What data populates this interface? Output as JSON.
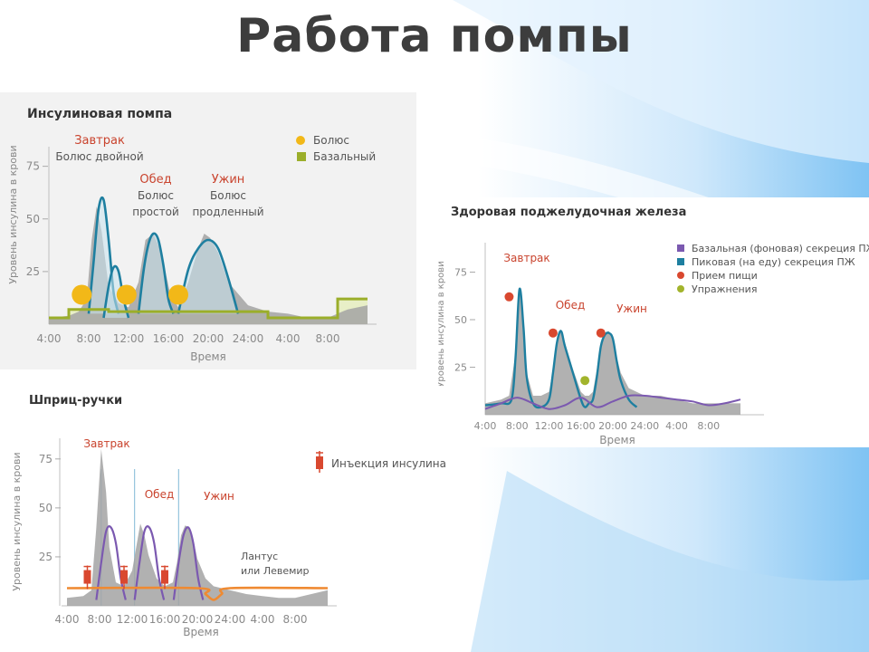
{
  "slide_title": "Работа помпы",
  "colors": {
    "bolus": "#f2b818",
    "basal": "#9bae2a",
    "peak_curve": "#1e7fa0",
    "fill_gray": "#a3a3a3",
    "meal_label": "#c9432d",
    "basal_secretion": "#7b59b0",
    "food_intake": "#d9482f",
    "exercise": "#a2b42c",
    "injection": "#d9482f",
    "long_insulin": "#ef8a32"
  },
  "chart_data": [
    {
      "id": "pump",
      "type": "area",
      "title": "Инсулиновая помпа",
      "xlabel": "Время",
      "ylabel": "Уровень инсулина в крови",
      "x_ticks": [
        "4:00",
        "8:00",
        "12:00",
        "16:00",
        "20:00",
        "24:00",
        "4:00",
        "8:00"
      ],
      "x_range": [
        4,
        36
      ],
      "y_ticks": [
        25,
        50,
        75
      ],
      "ylim": [
        0,
        80
      ],
      "legend": [
        {
          "label": "Болюс",
          "marker": "circle",
          "color": "#f2b818"
        },
        {
          "label": "Базальный",
          "marker": "square",
          "color": "#9bae2a"
        }
      ],
      "annotations": [
        {
          "meal": "Завтрак",
          "note": "Болюс двойной"
        },
        {
          "meal": "Обед",
          "note": "Болюс простой"
        },
        {
          "meal": "Ужин",
          "note": "Болюс продленный"
        }
      ],
      "series": [
        {
          "name": "Болюс",
          "type": "scatter",
          "x": [
            7.3,
            11.8,
            17.0
          ],
          "y": [
            14,
            14,
            14
          ]
        },
        {
          "name": "Базальный",
          "type": "step",
          "x": [
            4,
            6,
            6,
            10,
            10,
            26,
            26,
            28,
            28,
            33,
            33,
            36
          ],
          "y": [
            3,
            3,
            7,
            7,
            6,
            6,
            3,
            3,
            3,
            3,
            12,
            12
          ]
        }
      ],
      "insulin_curves": [
        {
          "x": [
            8,
            8.5,
            9,
            9.5,
            10,
            10.5,
            11
          ],
          "y": [
            5,
            30,
            55,
            59,
            40,
            15,
            5
          ]
        },
        {
          "x": [
            9.5,
            10,
            10.5,
            11,
            11.5,
            12
          ],
          "y": [
            3,
            18,
            27,
            25,
            12,
            3
          ]
        },
        {
          "x": [
            13,
            13.5,
            14,
            14.5,
            15,
            15.5,
            16,
            16.5
          ],
          "y": [
            5,
            25,
            38,
            43,
            40,
            28,
            12,
            5
          ]
        },
        {
          "x": [
            17,
            18,
            19,
            20,
            21,
            22,
            23
          ],
          "y": [
            5,
            26,
            36,
            40,
            36,
            22,
            5
          ]
        }
      ],
      "glucose_gray": {
        "x": [
          4,
          6,
          7,
          7.8,
          8.3,
          8.8,
          9.3,
          10,
          11,
          12,
          13,
          13.7,
          14.5,
          15.3,
          16.2,
          17,
          18,
          19,
          19.6,
          20.2,
          21,
          22,
          24,
          26,
          28,
          30,
          32,
          34,
          36
        ],
        "y": [
          3,
          4,
          6,
          12,
          40,
          56,
          44,
          18,
          10,
          8,
          20,
          40,
          43,
          34,
          14,
          8,
          20,
          36,
          43,
          41,
          34,
          20,
          9,
          6,
          5,
          3,
          3,
          7,
          9
        ]
      }
    },
    {
      "id": "healthy",
      "type": "area",
      "title": "Здоровая поджелудочная железа",
      "xlabel": "Время",
      "ylabel": "Уровень инсулина в крови",
      "x_ticks": [
        "4:00",
        "8:00",
        "12:00",
        "16:00",
        "20:00",
        "24:00",
        "4:00",
        "8:00"
      ],
      "x_range": [
        4,
        36
      ],
      "y_ticks": [
        25,
        50,
        75
      ],
      "ylim": [
        0,
        80
      ],
      "legend": [
        {
          "label": "Базальная (фоновая) секреция ПЖ",
          "marker": "square",
          "color": "#7b59b0"
        },
        {
          "label": "Пиковая (на еду) секреция ПЖ",
          "marker": "square",
          "color": "#1e7fa0"
        },
        {
          "label": "Прием пищи",
          "marker": "circle",
          "color": "#d9482f"
        },
        {
          "label": "Упражнения",
          "marker": "circle",
          "color": "#a2b42c"
        }
      ],
      "meals": [
        {
          "label": "Завтрак",
          "x": 7.0,
          "y": 62
        },
        {
          "label": "Обед",
          "x": 12.5,
          "y": 43
        },
        {
          "label": "Ужин",
          "x": 18.5,
          "y": 43
        }
      ],
      "exercise": [
        {
          "x": 16.5,
          "y": 18
        }
      ],
      "series": [
        {
          "name": "Базальная (фоновая) секреция ПЖ",
          "type": "line",
          "x": [
            4,
            6,
            8,
            10,
            12,
            14,
            16,
            18,
            20,
            22,
            24,
            26,
            28,
            30,
            32,
            34,
            36
          ],
          "y": [
            3,
            6,
            9,
            6,
            3,
            5,
            9,
            4,
            7,
            10,
            10,
            9,
            8,
            7,
            5,
            6,
            8
          ]
        },
        {
          "name": "Пиковая (на еду) секреция ПЖ",
          "type": "line",
          "x": [
            4,
            6,
            7.3,
            7.8,
            8.3,
            8.8,
            9.2,
            10,
            11,
            12,
            12.5,
            13,
            13.5,
            14,
            15,
            16,
            16.5,
            17,
            17.5,
            18,
            18.5,
            19,
            19.5,
            20,
            20.5,
            21,
            22,
            23
          ],
          "y": [
            5,
            6,
            8,
            30,
            66,
            46,
            20,
            6,
            4,
            8,
            22,
            38,
            44,
            36,
            22,
            8,
            4,
            6,
            8,
            20,
            36,
            42,
            43,
            40,
            28,
            18,
            8,
            4
          ]
        }
      ],
      "glucose_gray": {
        "x": [
          4,
          6,
          7,
          7.8,
          8.3,
          8.8,
          9.2,
          10,
          11,
          12,
          12.5,
          13,
          13.5,
          14,
          15,
          16,
          16.5,
          17,
          17.5,
          18,
          18.5,
          19,
          19.5,
          20,
          20.5,
          21,
          22,
          24,
          26,
          28,
          30,
          32,
          34,
          36
        ],
        "y": [
          6,
          8,
          10,
          32,
          67,
          48,
          22,
          10,
          10,
          12,
          24,
          40,
          45,
          38,
          24,
          12,
          10,
          10,
          12,
          24,
          38,
          43,
          44,
          41,
          30,
          22,
          14,
          10,
          10,
          8,
          6,
          6,
          6,
          6
        ]
      }
    },
    {
      "id": "pens",
      "type": "area",
      "title": "Шприц-ручки",
      "xlabel": "Время",
      "ylabel": "Уровень инсулина в крови",
      "x_ticks": [
        "4:00",
        "8:00",
        "12:00",
        "16:00",
        "20:00",
        "24:00",
        "4:00",
        "8:00"
      ],
      "x_range": [
        4,
        36
      ],
      "y_ticks": [
        25,
        50,
        75
      ],
      "ylim": [
        0,
        80
      ],
      "legend": [
        {
          "label": "Инъекция инсулина",
          "marker": "syringe",
          "color": "#d9482f"
        }
      ],
      "meals": [
        {
          "label": "Завтрак",
          "x": 8.2
        },
        {
          "label": "Обед",
          "x": 12.3
        },
        {
          "label": "Ужин",
          "x": 17.7
        }
      ],
      "injections": [
        {
          "x": 6.5,
          "y": 15
        },
        {
          "x": 11.0,
          "y": 15
        },
        {
          "x": 16.0,
          "y": 15
        }
      ],
      "long_acting_note": "Лантус или Левемир",
      "series": [
        {
          "name": "Инъекция инсулина",
          "type": "line",
          "x": [
            7.6,
            8.2,
            8.8,
            9.4,
            10,
            10.6,
            11.2
          ],
          "y": [
            3,
            22,
            38,
            40,
            32,
            14,
            3
          ]
        },
        {
          "name": "Инъекция инсулина",
          "type": "line",
          "x": [
            12.3,
            12.9,
            13.5,
            14.1,
            14.7,
            15.3,
            15.9
          ],
          "y": [
            3,
            22,
            38,
            40,
            32,
            14,
            3
          ]
        },
        {
          "name": "Инъекция инсулина",
          "type": "line",
          "x": [
            17.1,
            17.7,
            18.3,
            18.9,
            19.5,
            20.1,
            20.7
          ],
          "y": [
            3,
            22,
            36,
            40,
            32,
            14,
            3
          ]
        },
        {
          "name": "Лантус или Левемир",
          "type": "line",
          "x": [
            4,
            20,
            21,
            22,
            23,
            24,
            36
          ],
          "y": [
            9,
            9,
            6,
            3,
            6,
            9,
            9
          ]
        }
      ],
      "glucose_gray": {
        "x": [
          4,
          6,
          7,
          7.6,
          8.2,
          8.8,
          9.2,
          10,
          11,
          12,
          12.5,
          13,
          13.5,
          14,
          15,
          16,
          17,
          17.5,
          18,
          18.5,
          19,
          19.5,
          20,
          21,
          22,
          24,
          26,
          28,
          30,
          32,
          34,
          36
        ],
        "y": [
          4,
          5,
          8,
          40,
          80,
          58,
          30,
          12,
          10,
          18,
          30,
          42,
          36,
          26,
          14,
          10,
          12,
          22,
          36,
          41,
          40,
          34,
          24,
          14,
          10,
          8,
          6,
          5,
          4,
          4,
          6,
          8
        ]
      }
    }
  ]
}
